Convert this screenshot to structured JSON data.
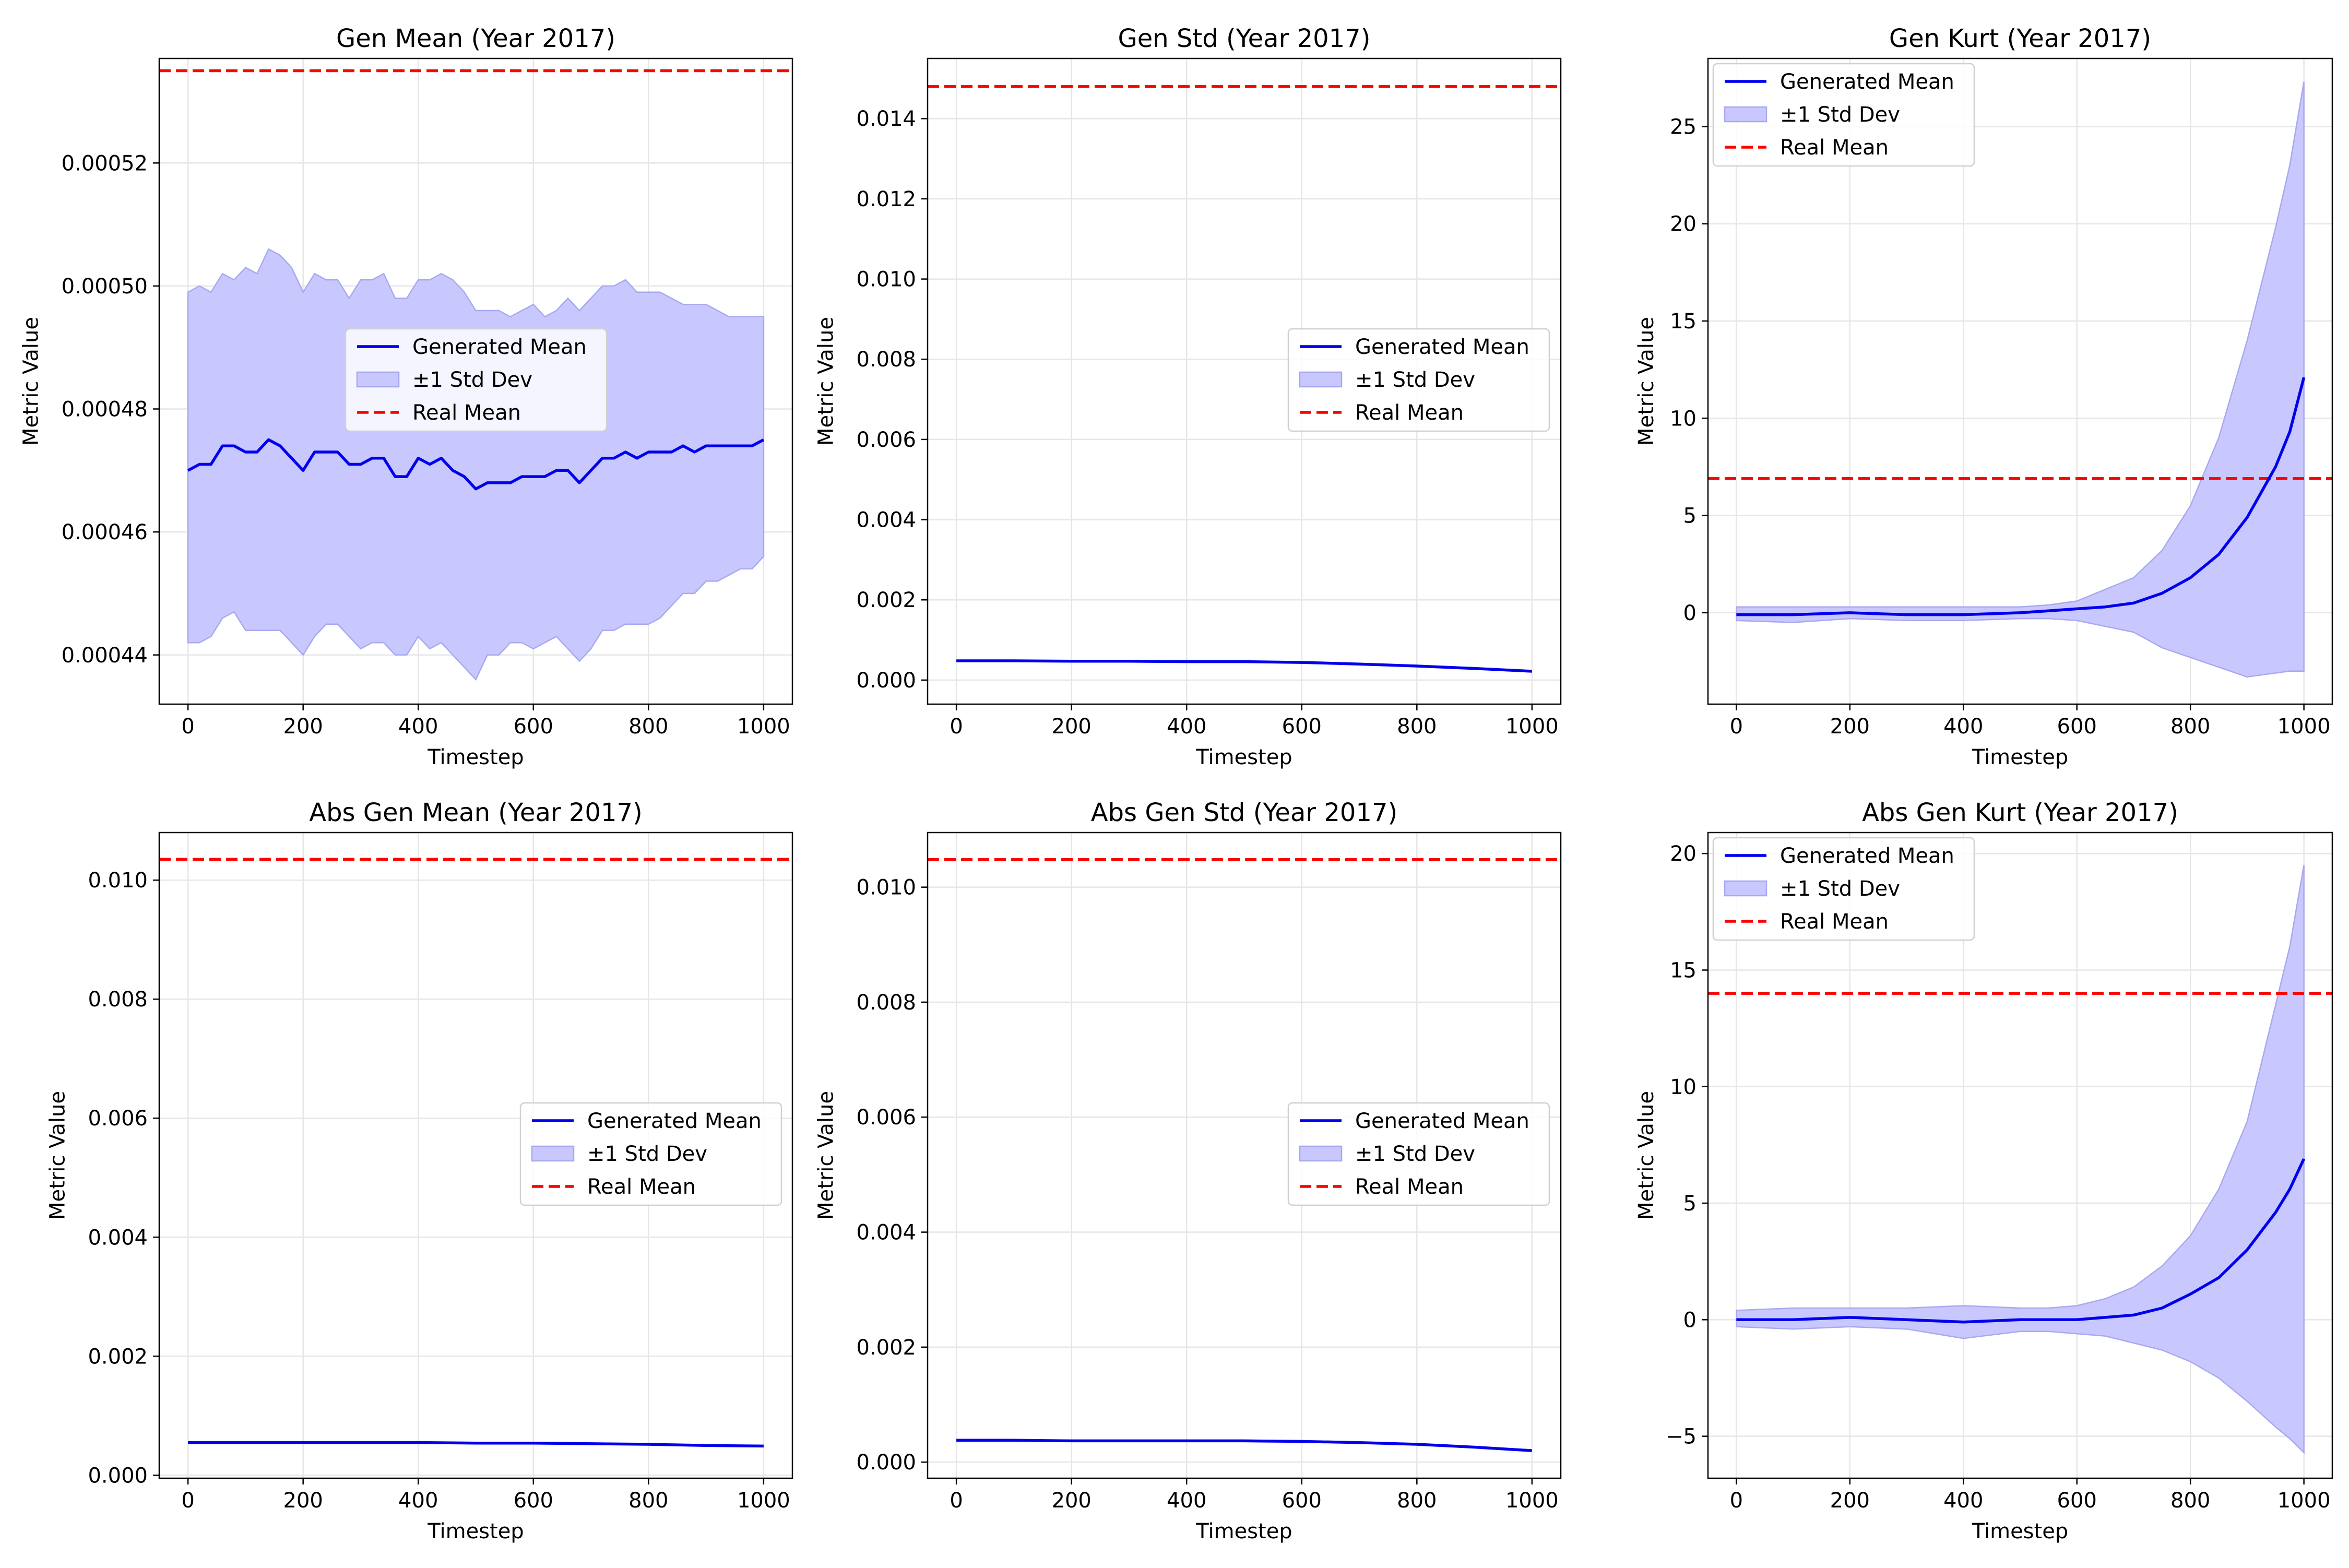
{
  "colors": {
    "generated": "#0000ee",
    "band": "#c8c8ff",
    "band_edge": "#a8a8f0",
    "real": "#ff0000",
    "grid": "#e6e6e6",
    "axis": "#000000"
  },
  "chart_data": [
    {
      "type": "line",
      "title": "Gen Mean (Year 2017)",
      "xlabel": "Timestep",
      "ylabel": "Metric Value",
      "xlim": [
        -50,
        1050
      ],
      "ylim": [
        0.000432,
        0.000537
      ],
      "xticks": [
        0,
        200,
        400,
        600,
        800,
        1000
      ],
      "yticks": [
        0.00044,
        0.00046,
        0.00048,
        0.0005,
        0.00052
      ],
      "ytick_labels": [
        "0.00044",
        "0.00046",
        "0.00048",
        "0.00050",
        "0.00052"
      ],
      "grid": true,
      "legend": "center",
      "x": [
        0,
        20,
        40,
        60,
        80,
        100,
        120,
        140,
        160,
        180,
        200,
        220,
        240,
        260,
        280,
        300,
        320,
        340,
        360,
        380,
        400,
        420,
        440,
        460,
        480,
        500,
        520,
        540,
        560,
        580,
        600,
        620,
        640,
        660,
        680,
        700,
        720,
        740,
        760,
        780,
        800,
        820,
        840,
        860,
        880,
        900,
        920,
        940,
        960,
        980,
        1000
      ],
      "series": [
        {
          "name": "Generated Mean",
          "values": [
            0.00047,
            0.000471,
            0.000471,
            0.000474,
            0.000474,
            0.000473,
            0.000473,
            0.000475,
            0.000474,
            0.000472,
            0.00047,
            0.000473,
            0.000473,
            0.000473,
            0.000471,
            0.000471,
            0.000472,
            0.000472,
            0.000469,
            0.000469,
            0.000472,
            0.000471,
            0.000472,
            0.00047,
            0.000469,
            0.000467,
            0.000468,
            0.000468,
            0.000468,
            0.000469,
            0.000469,
            0.000469,
            0.00047,
            0.00047,
            0.000468,
            0.00047,
            0.000472,
            0.000472,
            0.000473,
            0.000472,
            0.000473,
            0.000473,
            0.000473,
            0.000474,
            0.000473,
            0.000474,
            0.000474,
            0.000474,
            0.000474,
            0.000474,
            0.000475
          ]
        },
        {
          "name": "±1 Std Dev",
          "upper": [
            0.000499,
            0.0005,
            0.000499,
            0.000502,
            0.000501,
            0.000503,
            0.000502,
            0.000506,
            0.000505,
            0.000503,
            0.000499,
            0.000502,
            0.000501,
            0.000501,
            0.000498,
            0.000501,
            0.000501,
            0.000502,
            0.000498,
            0.000498,
            0.000501,
            0.000501,
            0.000502,
            0.000501,
            0.000499,
            0.000496,
            0.000496,
            0.000496,
            0.000495,
            0.000496,
            0.000497,
            0.000495,
            0.000496,
            0.000498,
            0.000496,
            0.000498,
            0.0005,
            0.0005,
            0.000501,
            0.000499,
            0.000499,
            0.000499,
            0.000498,
            0.000497,
            0.000497,
            0.000497,
            0.000496,
            0.000495,
            0.000495,
            0.000495,
            0.000495
          ],
          "lower": [
            0.000442,
            0.000442,
            0.000443,
            0.000446,
            0.000447,
            0.000444,
            0.000444,
            0.000444,
            0.000444,
            0.000442,
            0.00044,
            0.000443,
            0.000445,
            0.000445,
            0.000443,
            0.000441,
            0.000442,
            0.000442,
            0.00044,
            0.00044,
            0.000443,
            0.000441,
            0.000442,
            0.00044,
            0.000438,
            0.000436,
            0.00044,
            0.00044,
            0.000442,
            0.000442,
            0.000441,
            0.000442,
            0.000443,
            0.000441,
            0.000439,
            0.000441,
            0.000444,
            0.000444,
            0.000445,
            0.000445,
            0.000445,
            0.000446,
            0.000448,
            0.00045,
            0.00045,
            0.000452,
            0.000452,
            0.000453,
            0.000454,
            0.000454,
            0.000456
          ]
        },
        {
          "name": "Real Mean",
          "value": 0.000535
        }
      ]
    },
    {
      "type": "line",
      "title": "Gen Std (Year 2017)",
      "xlabel": "Timestep",
      "ylabel": "Metric Value",
      "xlim": [
        -50,
        1050
      ],
      "ylim": [
        -0.0006,
        0.0155
      ],
      "xticks": [
        0,
        200,
        400,
        600,
        800,
        1000
      ],
      "yticks": [
        0,
        0.002,
        0.004,
        0.006,
        0.008,
        0.01,
        0.012,
        0.014
      ],
      "ytick_labels": [
        "0.000",
        "0.002",
        "0.004",
        "0.006",
        "0.008",
        "0.010",
        "0.012",
        "0.014"
      ],
      "grid": true,
      "legend": "center-right",
      "x": [
        0,
        100,
        200,
        300,
        400,
        500,
        600,
        700,
        800,
        900,
        1000
      ],
      "series": [
        {
          "name": "Generated Mean",
          "values": [
            0.00048,
            0.00048,
            0.00047,
            0.00047,
            0.00046,
            0.00046,
            0.00044,
            0.0004,
            0.00035,
            0.00029,
            0.00022
          ]
        },
        {
          "name": "±1 Std Dev",
          "upper": [
            0.00048,
            0.00048,
            0.00047,
            0.00047,
            0.00046,
            0.00046,
            0.00044,
            0.0004,
            0.00035,
            0.00029,
            0.00022
          ],
          "lower": [
            0.00048,
            0.00048,
            0.00047,
            0.00047,
            0.00046,
            0.00046,
            0.00044,
            0.0004,
            0.00035,
            0.00029,
            0.00022
          ]
        },
        {
          "name": "Real Mean",
          "value": 0.0148
        }
      ]
    },
    {
      "type": "line",
      "title": "Gen Kurt (Year 2017)",
      "xlabel": "Timestep",
      "ylabel": "Metric Value",
      "xlim": [
        -50,
        1050
      ],
      "ylim": [
        -4.7,
        28.5
      ],
      "xticks": [
        0,
        200,
        400,
        600,
        800,
        1000
      ],
      "yticks": [
        0,
        5,
        10,
        15,
        20,
        25
      ],
      "ytick_labels": [
        "0",
        "5",
        "10",
        "15",
        "20",
        "25"
      ],
      "grid": true,
      "legend": "upper left",
      "x": [
        0,
        100,
        200,
        300,
        400,
        500,
        550,
        600,
        650,
        700,
        750,
        800,
        850,
        900,
        950,
        975,
        1000
      ],
      "series": [
        {
          "name": "Generated Mean",
          "values": [
            -0.1,
            -0.1,
            0.0,
            -0.1,
            -0.1,
            0.0,
            0.1,
            0.2,
            0.3,
            0.5,
            1.0,
            1.8,
            3.0,
            4.9,
            7.5,
            9.3,
            12.1
          ]
        },
        {
          "name": "±1 Std Dev",
          "upper": [
            0.3,
            0.3,
            0.3,
            0.3,
            0.3,
            0.3,
            0.4,
            0.6,
            1.2,
            1.8,
            3.2,
            5.5,
            9.0,
            14.0,
            19.8,
            23.0,
            27.3
          ],
          "lower": [
            -0.4,
            -0.5,
            -0.3,
            -0.4,
            -0.4,
            -0.3,
            -0.3,
            -0.4,
            -0.7,
            -1.0,
            -1.8,
            -2.3,
            -2.8,
            -3.3,
            -3.1,
            -3.0,
            -3.0
          ]
        },
        {
          "name": "Real Mean",
          "value": 6.9
        }
      ]
    },
    {
      "type": "line",
      "title": "Abs Gen Mean (Year 2017)",
      "xlabel": "Timestep",
      "ylabel": "Metric Value",
      "xlim": [
        -50,
        1050
      ],
      "ylim": [
        -5e-05,
        0.0108
      ],
      "xticks": [
        0,
        200,
        400,
        600,
        800,
        1000
      ],
      "yticks": [
        0,
        0.002,
        0.004,
        0.006,
        0.008,
        0.01
      ],
      "ytick_labels": [
        "0.000",
        "0.002",
        "0.004",
        "0.006",
        "0.008",
        "0.010"
      ],
      "grid": true,
      "legend": "center-right",
      "x": [
        0,
        100,
        200,
        300,
        400,
        500,
        600,
        700,
        800,
        900,
        1000
      ],
      "series": [
        {
          "name": "Generated Mean",
          "values": [
            0.00055,
            0.00055,
            0.00055,
            0.00055,
            0.00055,
            0.00054,
            0.00054,
            0.00053,
            0.00052,
            0.0005,
            0.00049
          ]
        },
        {
          "name": "±1 Std Dev",
          "upper": [
            0.00055,
            0.00055,
            0.00055,
            0.00055,
            0.00055,
            0.00054,
            0.00054,
            0.00053,
            0.00052,
            0.0005,
            0.00049
          ],
          "lower": [
            0.00055,
            0.00055,
            0.00055,
            0.00055,
            0.00055,
            0.00054,
            0.00054,
            0.00053,
            0.00052,
            0.0005,
            0.00049
          ]
        },
        {
          "name": "Real Mean",
          "value": 0.01035
        }
      ]
    },
    {
      "type": "line",
      "title": "Abs Gen Std (Year 2017)",
      "xlabel": "Timestep",
      "ylabel": "Metric Value",
      "xlim": [
        -50,
        1050
      ],
      "ylim": [
        -0.00028,
        0.01095
      ],
      "xticks": [
        0,
        200,
        400,
        600,
        800,
        1000
      ],
      "yticks": [
        0,
        0.002,
        0.004,
        0.006,
        0.008,
        0.01
      ],
      "ytick_labels": [
        "0.000",
        "0.002",
        "0.004",
        "0.006",
        "0.008",
        "0.010"
      ],
      "grid": true,
      "legend": "center-right",
      "x": [
        0,
        100,
        200,
        300,
        400,
        500,
        600,
        700,
        800,
        900,
        1000
      ],
      "series": [
        {
          "name": "Generated Mean",
          "values": [
            0.00038,
            0.00038,
            0.00037,
            0.00037,
            0.00037,
            0.00037,
            0.00036,
            0.00034,
            0.00031,
            0.00026,
            0.0002
          ]
        },
        {
          "name": "±1 Std Dev",
          "upper": [
            0.00038,
            0.00038,
            0.00037,
            0.00037,
            0.00037,
            0.00037,
            0.00036,
            0.00034,
            0.00031,
            0.00026,
            0.0002
          ],
          "lower": [
            0.00038,
            0.00038,
            0.00037,
            0.00037,
            0.00037,
            0.00037,
            0.00036,
            0.00034,
            0.00031,
            0.00026,
            0.0002
          ]
        },
        {
          "name": "Real Mean",
          "value": 0.01048
        }
      ]
    },
    {
      "type": "line",
      "title": "Abs Gen Kurt (Year 2017)",
      "xlabel": "Timestep",
      "ylabel": "Metric Value",
      "xlim": [
        -50,
        1050
      ],
      "ylim": [
        -6.8,
        20.9
      ],
      "xticks": [
        0,
        200,
        400,
        600,
        800,
        1000
      ],
      "yticks": [
        -5,
        0,
        5,
        10,
        15,
        20
      ],
      "ytick_labels": [
        "−5",
        "0",
        "5",
        "10",
        "15",
        "20"
      ],
      "grid": true,
      "legend": "upper left",
      "x": [
        0,
        100,
        200,
        300,
        400,
        500,
        550,
        600,
        650,
        700,
        750,
        800,
        850,
        900,
        950,
        975,
        1000
      ],
      "series": [
        {
          "name": "Generated Mean",
          "values": [
            0.0,
            0.0,
            0.1,
            0.0,
            -0.1,
            0.0,
            0.0,
            0.0,
            0.1,
            0.2,
            0.5,
            1.1,
            1.8,
            3.0,
            4.6,
            5.6,
            6.9
          ]
        },
        {
          "name": "±1 Std Dev",
          "upper": [
            0.4,
            0.5,
            0.5,
            0.5,
            0.6,
            0.5,
            0.5,
            0.6,
            0.9,
            1.4,
            2.3,
            3.6,
            5.6,
            8.5,
            13.5,
            16.0,
            19.5
          ],
          "lower": [
            -0.3,
            -0.4,
            -0.3,
            -0.4,
            -0.8,
            -0.5,
            -0.5,
            -0.6,
            -0.7,
            -1.0,
            -1.3,
            -1.8,
            -2.5,
            -3.5,
            -4.6,
            -5.1,
            -5.7
          ]
        },
        {
          "name": "Real Mean",
          "value": 14.0
        }
      ]
    }
  ]
}
